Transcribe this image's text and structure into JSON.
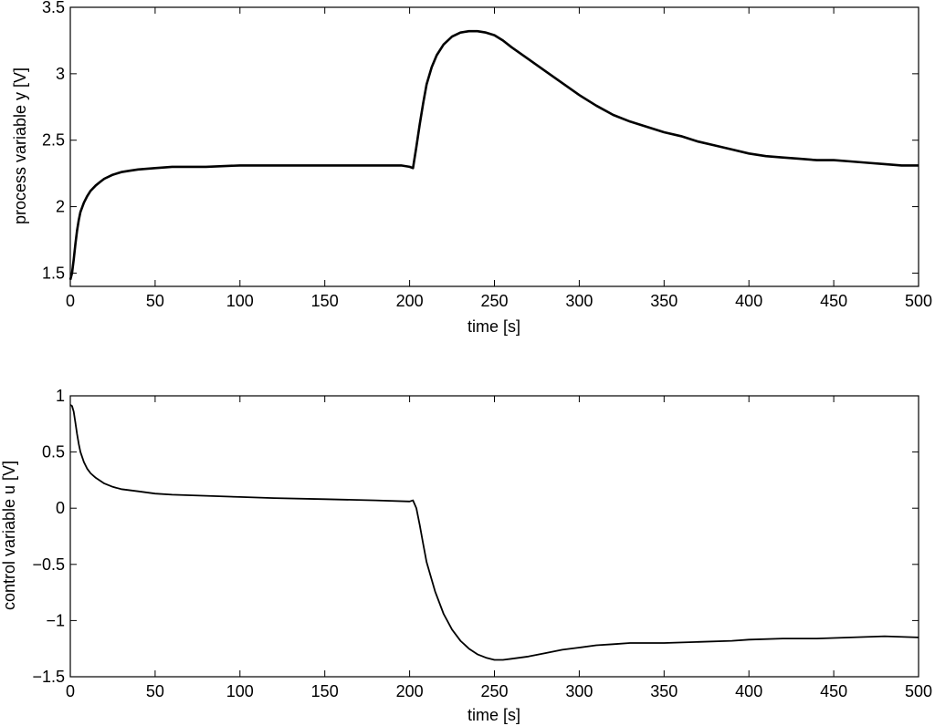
{
  "chart_data": [
    {
      "type": "line",
      "title": "",
      "xlabel": "time [s]",
      "ylabel": "process variable y [V]",
      "xlim": [
        0,
        500
      ],
      "ylim": [
        1.4,
        3.5
      ],
      "xticks": [
        0,
        50,
        100,
        150,
        200,
        250,
        300,
        350,
        400,
        450,
        500
      ],
      "xtick_labels": [
        "0",
        "50",
        "100",
        "150",
        "200",
        "250",
        "300",
        "350",
        "400",
        "450",
        "500"
      ],
      "yticks": [
        1.5,
        2,
        2.5,
        3,
        3.5
      ],
      "ytick_labels": [
        "1.5",
        "2",
        "2.5",
        "3",
        "3.5"
      ],
      "grid": false,
      "line_color": "#000000",
      "series": [
        {
          "x": [
            0,
            1,
            2,
            3,
            4,
            5,
            6,
            8,
            10,
            12,
            15,
            18,
            20,
            25,
            30,
            35,
            40,
            50,
            60,
            80,
            100,
            120,
            150,
            180,
            195,
            200,
            202,
            204,
            206,
            208,
            210,
            213,
            216,
            220,
            225,
            230,
            235,
            240,
            245,
            250,
            255,
            260,
            270,
            280,
            290,
            300,
            310,
            320,
            330,
            340,
            350,
            360,
            370,
            380,
            390,
            400,
            410,
            420,
            430,
            440,
            450,
            460,
            470,
            480,
            490,
            500
          ],
          "y": [
            1.45,
            1.5,
            1.6,
            1.72,
            1.82,
            1.9,
            1.96,
            2.03,
            2.08,
            2.12,
            2.16,
            2.19,
            2.21,
            2.24,
            2.26,
            2.27,
            2.28,
            2.29,
            2.3,
            2.3,
            2.31,
            2.31,
            2.31,
            2.31,
            2.31,
            2.3,
            2.29,
            2.45,
            2.62,
            2.78,
            2.92,
            3.05,
            3.14,
            3.22,
            3.28,
            3.31,
            3.32,
            3.32,
            3.31,
            3.29,
            3.25,
            3.2,
            3.11,
            3.02,
            2.93,
            2.84,
            2.76,
            2.69,
            2.64,
            2.6,
            2.56,
            2.53,
            2.49,
            2.46,
            2.43,
            2.4,
            2.38,
            2.37,
            2.36,
            2.35,
            2.35,
            2.34,
            2.33,
            2.32,
            2.31,
            2.31
          ]
        }
      ]
    },
    {
      "type": "line",
      "title": "",
      "xlabel": "time [s]",
      "ylabel": "control variable u [V]",
      "xlim": [
        0,
        500
      ],
      "ylim": [
        -1.5,
        1
      ],
      "xticks": [
        0,
        50,
        100,
        150,
        200,
        250,
        300,
        350,
        400,
        450,
        500
      ],
      "xtick_labels": [
        "0",
        "50",
        "100",
        "150",
        "200",
        "250",
        "300",
        "350",
        "400",
        "450",
        "500"
      ],
      "yticks": [
        -1.5,
        -1,
        -0.5,
        0,
        0.5,
        1
      ],
      "ytick_labels": [
        "−1.5",
        "−1",
        "−0.5",
        "0",
        "0.5",
        "1"
      ],
      "grid": false,
      "line_color": "#000000",
      "series": [
        {
          "x": [
            0,
            1,
            2,
            3,
            4,
            5,
            6,
            8,
            10,
            12,
            15,
            20,
            25,
            30,
            40,
            50,
            60,
            80,
            100,
            120,
            150,
            180,
            200,
            202,
            204,
            206,
            208,
            210,
            215,
            220,
            225,
            230,
            235,
            240,
            245,
            250,
            255,
            260,
            270,
            280,
            290,
            300,
            310,
            320,
            330,
            340,
            350,
            370,
            390,
            400,
            420,
            440,
            460,
            480,
            500
          ],
          "y": [
            0.92,
            0.91,
            0.86,
            0.76,
            0.66,
            0.57,
            0.5,
            0.41,
            0.35,
            0.31,
            0.27,
            0.22,
            0.19,
            0.17,
            0.15,
            0.13,
            0.12,
            0.11,
            0.1,
            0.09,
            0.08,
            0.07,
            0.06,
            0.07,
            0.0,
            -0.15,
            -0.32,
            -0.48,
            -0.74,
            -0.94,
            -1.08,
            -1.18,
            -1.25,
            -1.3,
            -1.33,
            -1.35,
            -1.35,
            -1.34,
            -1.32,
            -1.29,
            -1.26,
            -1.24,
            -1.22,
            -1.21,
            -1.2,
            -1.2,
            -1.2,
            -1.19,
            -1.18,
            -1.17,
            -1.16,
            -1.16,
            -1.15,
            -1.14,
            -1.15
          ]
        }
      ]
    }
  ]
}
